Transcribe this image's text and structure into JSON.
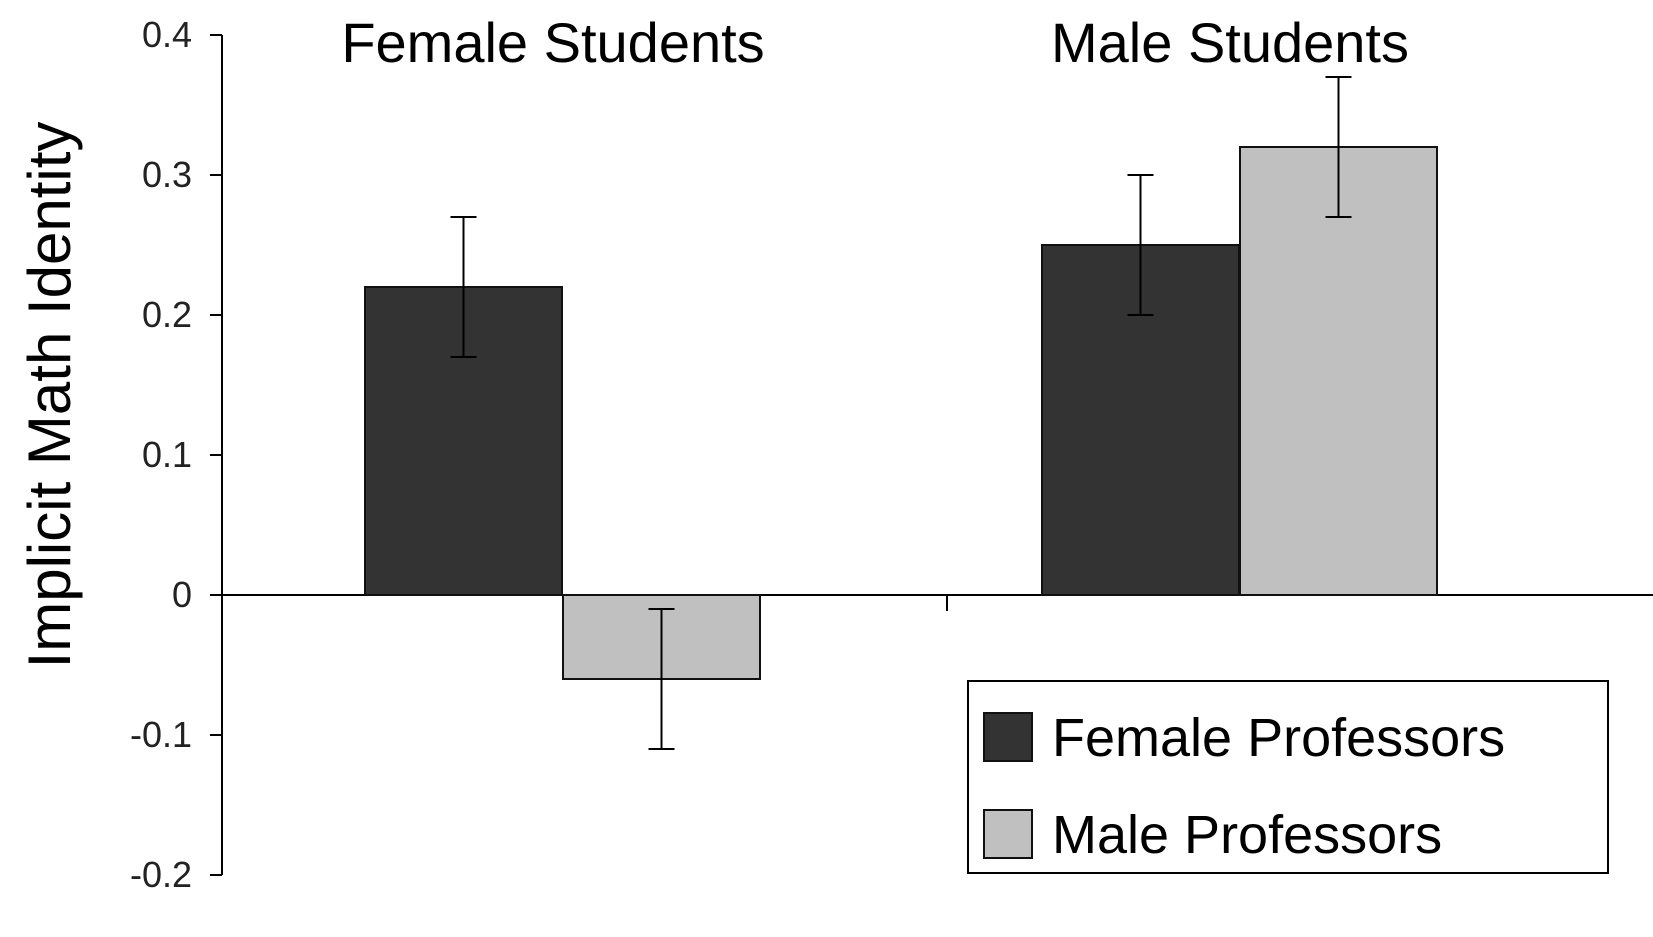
{
  "chart_data": {
    "type": "bar",
    "title": "",
    "xlabel": "",
    "ylabel": "Implicit Math Identity",
    "ylim": [
      -0.2,
      0.4
    ],
    "yticks": [
      {
        "value": 0.4,
        "label": "0.4"
      },
      {
        "value": 0.3,
        "label": "0.3"
      },
      {
        "value": 0.2,
        "label": "0.2"
      },
      {
        "value": 0.1,
        "label": "0.1"
      },
      {
        "value": 0,
        "label": "0"
      },
      {
        "value": -0.1,
        "label": "-0.1"
      },
      {
        "value": -0.2,
        "label": "-0.2"
      }
    ],
    "categories": [
      "Female Students",
      "Male Students"
    ],
    "series": [
      {
        "name": "Female Professors",
        "color": "#333333",
        "values": [
          0.22,
          0.25
        ],
        "error_low": [
          0.17,
          0.2
        ],
        "error_high": [
          0.27,
          0.3
        ]
      },
      {
        "name": "Male Professors",
        "color": "#c0c0c0",
        "values": [
          -0.06,
          0.32
        ],
        "error_low": [
          -0.11,
          0.27
        ],
        "error_high": [
          -0.01,
          0.37
        ]
      }
    ],
    "legend_position": "bottom-right",
    "grid": false
  }
}
